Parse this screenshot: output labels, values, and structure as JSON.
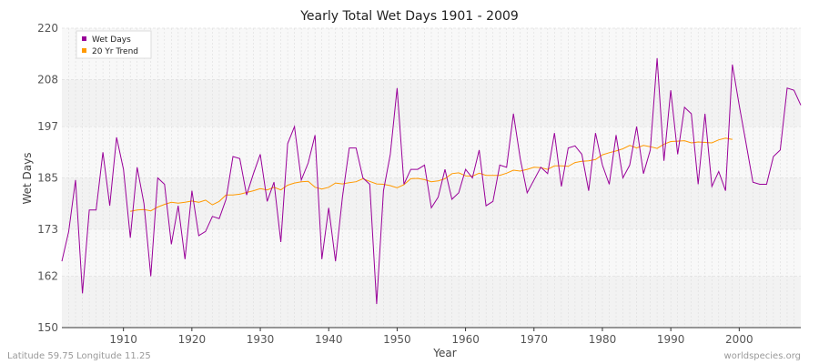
{
  "chart_data": {
    "type": "line",
    "title": "Yearly Total Wet Days 1901 - 2009",
    "xlabel": "Year",
    "ylabel": "Wet Days",
    "xlim": [
      1901,
      2009
    ],
    "ylim": [
      150,
      220
    ],
    "yticks": [
      "150",
      "162",
      "173",
      "185",
      "197",
      "208",
      "220"
    ],
    "xticks": [
      "1910",
      "1920",
      "1930",
      "1940",
      "1950",
      "1960",
      "1970",
      "1980",
      "1990",
      "2000"
    ],
    "grid": true,
    "legend_position": "top-left",
    "series": [
      {
        "name": "Wet Days",
        "color": "#990099",
        "x": [
          1901,
          1902,
          1903,
          1904,
          1905,
          1906,
          1907,
          1908,
          1909,
          1910,
          1911,
          1912,
          1913,
          1914,
          1915,
          1916,
          1917,
          1918,
          1919,
          1920,
          1921,
          1922,
          1923,
          1924,
          1925,
          1926,
          1927,
          1928,
          1929,
          1930,
          1931,
          1932,
          1933,
          1934,
          1935,
          1936,
          1937,
          1938,
          1939,
          1940,
          1941,
          1942,
          1943,
          1944,
          1945,
          1946,
          1947,
          1948,
          1949,
          1950,
          1951,
          1952,
          1953,
          1954,
          1955,
          1956,
          1957,
          1958,
          1959,
          1960,
          1961,
          1962,
          1963,
          1964,
          1965,
          1966,
          1967,
          1968,
          1969,
          1970,
          1971,
          1972,
          1973,
          1974,
          1975,
          1976,
          1977,
          1978,
          1979,
          1980,
          1981,
          1982,
          1983,
          1984,
          1985,
          1986,
          1987,
          1988,
          1989,
          1990,
          1991,
          1992,
          1993,
          1994,
          1995,
          1996,
          1997,
          1998,
          1999,
          2000,
          2001,
          2002,
          2003,
          2004,
          2005,
          2006,
          2007,
          2008,
          2009
        ],
        "values": [
          165.5,
          172.5,
          184.5,
          158,
          177.5,
          177.5,
          191,
          178.5,
          194.5,
          187,
          171,
          187.5,
          179,
          162,
          185,
          183.5,
          169.5,
          178.5,
          166,
          182,
          171.5,
          172.5,
          176,
          175.5,
          180,
          190,
          189.5,
          181,
          186,
          190.5,
          179.5,
          184,
          170,
          193,
          197,
          184.5,
          188.5,
          195,
          166,
          178,
          165.5,
          180.5,
          192,
          192,
          185,
          183.5,
          155.5,
          182,
          190.5,
          206,
          183.5,
          187,
          187,
          188,
          178,
          180.5,
          187,
          180,
          181.5,
          187,
          185,
          191.5,
          178.5,
          179.5,
          188,
          187.5,
          200,
          189.5,
          181.5,
          184.5,
          187.5,
          186,
          195.5,
          183,
          192,
          192.5,
          190.5,
          182,
          195.5,
          188,
          183.5,
          195,
          185,
          188,
          197,
          186,
          191.5,
          213,
          189,
          205.5,
          190.5,
          201.5,
          200,
          183.5,
          200,
          183,
          186.5,
          182,
          211.5,
          202,
          193,
          184,
          183.5,
          183.5,
          190,
          191.5,
          206,
          205.5,
          202
        ]
      },
      {
        "name": "20 Yr Trend",
        "color": "#ff9900",
        "x": [
          1911,
          1912,
          1913,
          1914,
          1915,
          1916,
          1917,
          1918,
          1919,
          1920,
          1921,
          1922,
          1923,
          1924,
          1925,
          1926,
          1927,
          1928,
          1929,
          1930,
          1931,
          1932,
          1933,
          1934,
          1935,
          1936,
          1937,
          1938,
          1939,
          1940,
          1941,
          1942,
          1943,
          1944,
          1945,
          1946,
          1947,
          1948,
          1949,
          1950,
          1951,
          1952,
          1953,
          1954,
          1955,
          1956,
          1957,
          1958,
          1959,
          1960,
          1961,
          1962,
          1963,
          1964,
          1965,
          1966,
          1967,
          1968,
          1969,
          1970,
          1971,
          1972,
          1973,
          1974,
          1975,
          1976,
          1977,
          1978,
          1979,
          1980,
          1981,
          1982,
          1983,
          1984,
          1985,
          1986,
          1987,
          1988,
          1989,
          1990,
          1991,
          1992,
          1993,
          1994,
          1995,
          1996,
          1997,
          1998,
          1999
        ],
        "values": [
          177.2,
          177.5,
          177.6,
          177.3,
          178.2,
          178.8,
          179.3,
          179.1,
          179.3,
          179.6,
          179.3,
          179.8,
          178.7,
          179.5,
          181.0,
          181.0,
          181.2,
          181.6,
          182.0,
          182.5,
          182.2,
          182.8,
          182.2,
          183.3,
          183.8,
          184.1,
          184.2,
          182.8,
          182.4,
          182.8,
          183.8,
          183.6,
          183.9,
          184.1,
          184.8,
          184.2,
          183.6,
          183.5,
          183.2,
          182.7,
          183.4,
          184.8,
          184.9,
          184.6,
          184.1,
          184.3,
          184.8,
          186.0,
          186.2,
          185.5,
          185.4,
          186.1,
          185.6,
          185.6,
          185.6,
          186.1,
          186.8,
          186.6,
          187.0,
          187.5,
          187.4,
          187.0,
          187.8,
          187.8,
          187.7,
          188.6,
          188.9,
          189.0,
          189.3,
          190.4,
          190.9,
          191.3,
          191.8,
          192.6,
          192.0,
          192.6,
          192.3,
          191.9,
          192.9,
          193.5,
          193.6,
          193.7,
          193.2,
          193.4,
          193.3,
          193.2,
          193.9,
          194.3,
          194.0
        ]
      }
    ]
  },
  "footer": {
    "left": "Latitude 59.75 Longitude 11.25",
    "right": "worldspecies.org"
  }
}
